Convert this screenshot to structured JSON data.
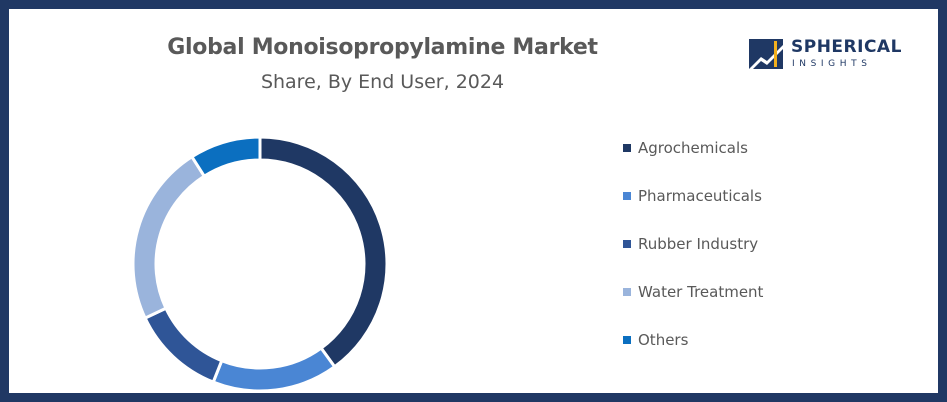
{
  "header": {
    "title": "Global Monoisopropylamine Market",
    "subtitle": "Share, By End User, 2024"
  },
  "logo": {
    "name": "SPHERICAL",
    "tagline": "INSIGHTS"
  },
  "chart_data": {
    "type": "pie",
    "variant": "donut",
    "title": "Global Monoisopropylamine Market",
    "subtitle": "Share, By End User, 2024",
    "categories": [
      "Agrochemicals",
      "Pharmaceuticals",
      "Rubber Industry",
      "Water Treatment",
      "Others"
    ],
    "values": [
      40,
      16,
      12,
      23,
      9
    ],
    "colors": [
      "#1f3864",
      "#4a86d4",
      "#2f5597",
      "#9ab4dc",
      "#0b6fc0"
    ],
    "legend": "right",
    "data_labels": false
  }
}
